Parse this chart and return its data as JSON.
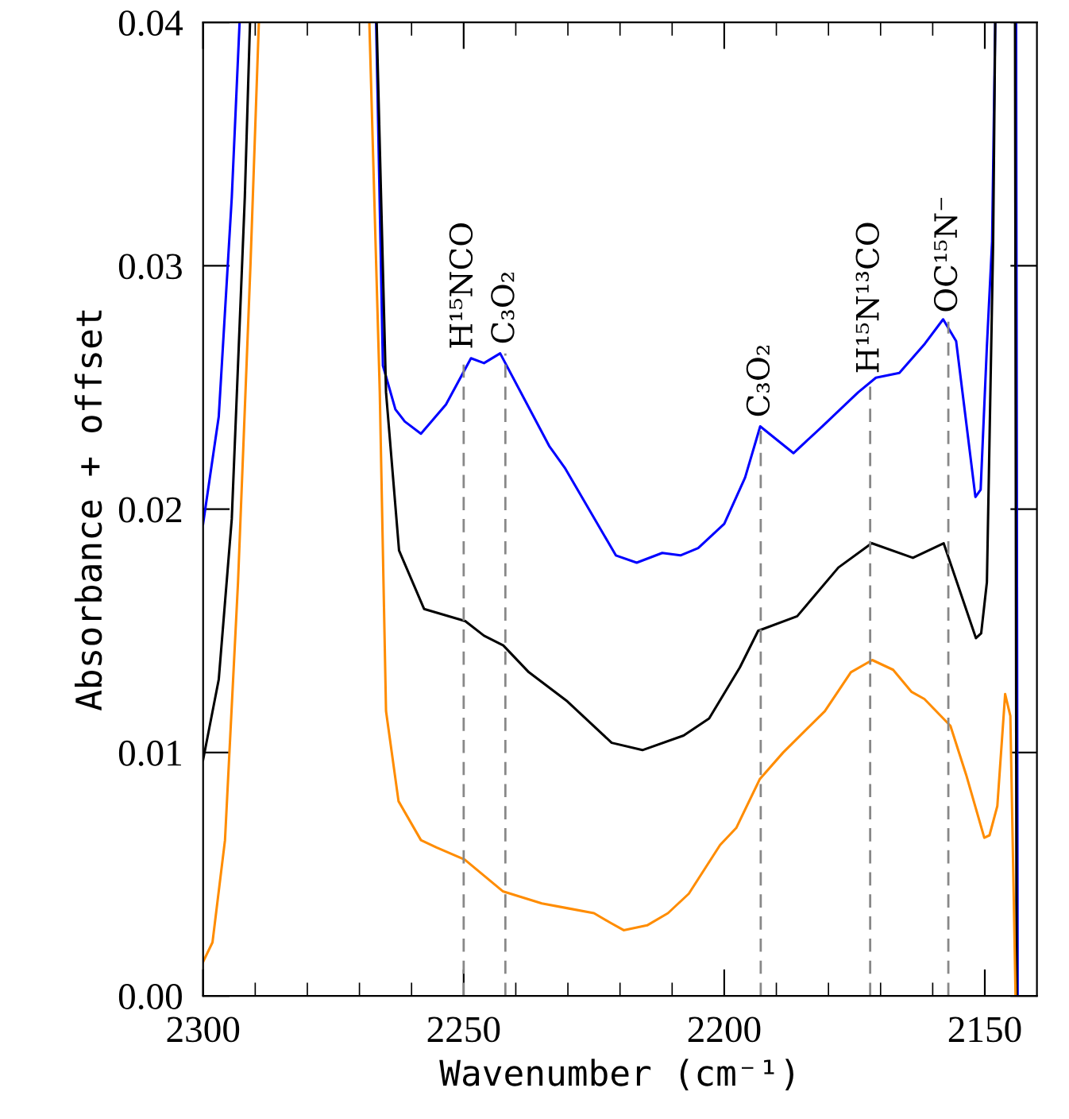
{
  "chart_data": {
    "type": "line",
    "xlabel": "Wavenumber (cm⁻¹)",
    "ylabel": "Absorbance + offset",
    "xlim": [
      2300,
      2140
    ],
    "ylim": [
      0,
      0.04
    ],
    "xticks": [
      2300,
      {
        "value": 2290,
        "label": null
      },
      {
        "value": 2280,
        "label": null
      },
      {
        "value": 2270,
        "label": null
      },
      {
        "value": 2260,
        "label": null
      },
      2250,
      {
        "value": 2240,
        "label": null
      },
      {
        "value": 2230,
        "label": null
      },
      {
        "value": 2220,
        "label": null
      },
      {
        "value": 2210,
        "label": null
      },
      2200,
      {
        "value": 2190,
        "label": null
      },
      {
        "value": 2180,
        "label": null
      },
      {
        "value": 2170,
        "label": null
      },
      {
        "value": 2160,
        "label": null
      },
      2150
    ],
    "yticks": [
      {
        "value": 0,
        "label": "0.00"
      },
      {
        "value": 0.01,
        "label": "0.01"
      },
      {
        "value": 0.02,
        "label": "0.02"
      },
      {
        "value": 0.03,
        "label": "0.03"
      },
      {
        "value": 0.04,
        "label": "0.04"
      }
    ],
    "grid": false,
    "legend": false,
    "marker": "none",
    "line_style": "solid",
    "series": [
      {
        "color": "#0000ff",
        "x": [
          2300,
          2297,
          2294.5,
          2293,
          2280,
          2266.8,
          2265.5,
          2263.1,
          2261.3,
          2258.2,
          2253.4,
          2248.6,
          2246.1,
          2243,
          2233.6,
          2230.6,
          2220.8,
          2216.8,
          2211.9,
          2208.4,
          2205,
          2200,
          2196,
          2193.1,
          2186.7,
          2181.2,
          2174.3,
          2170.9,
          2166.4,
          2161.5,
          2158,
          2155.5,
          2151.8,
          2150.8,
          2149.6,
          2148.6,
          2148,
          2146,
          2144,
          2143.7
        ],
        "values": [
          0.0194,
          0.0238,
          0.0328,
          0.04,
          null,
          0.04,
          0.0259,
          0.0241,
          0.0236,
          0.0231,
          0.0243,
          0.0262,
          0.026,
          0.0264,
          0.0226,
          0.0217,
          0.0181,
          0.0178,
          0.0182,
          0.0181,
          0.0184,
          0.0194,
          0.0213,
          0.0234,
          0.0223,
          0.0234,
          0.0248,
          0.0254,
          0.0256,
          0.0268,
          0.0278,
          0.0269,
          0.0205,
          0.0208,
          0.0267,
          0.031,
          0.04,
          null,
          0.04,
          0
        ]
      },
      {
        "color": "#000000",
        "x": [
          2300,
          2297,
          2294.5,
          2292,
          2291,
          2280,
          2266.7,
          2264.9,
          2262.4,
          2257.6,
          2249.7,
          2246.1,
          2242.4,
          2237.5,
          2230.1,
          2221.6,
          2215.7,
          2207.8,
          2202.9,
          2197,
          2193.5,
          2186,
          2178.1,
          2171.7,
          2163.8,
          2157.9,
          2151.7,
          2150.7,
          2149.6,
          2148.4,
          2148,
          2146,
          2144.2,
          2143.9
        ],
        "values": [
          0.0097,
          0.013,
          0.0196,
          0.0328,
          0.04,
          null,
          0.04,
          0.0248,
          0.0183,
          0.0159,
          0.0154,
          0.0148,
          0.0144,
          0.0133,
          0.0121,
          0.0104,
          0.0101,
          0.0107,
          0.0114,
          0.0135,
          0.015,
          0.0156,
          0.0176,
          0.0186,
          0.018,
          0.0186,
          0.0147,
          0.0149,
          0.017,
          0.031,
          0.04,
          null,
          0.04,
          0
        ]
      },
      {
        "color": "#ff8c00",
        "x": [
          2300,
          2298.2,
          2295.8,
          2293.3,
          2290.9,
          2289.3,
          2280,
          2268.1,
          2266.1,
          2264.9,
          2262.5,
          2258.2,
          2255.2,
          2249.8,
          2242.5,
          2235,
          2230,
          2225,
          2221.8,
          2219.3,
          2214.8,
          2210.8,
          2206.8,
          2200.8,
          2197.7,
          2193.2,
          2188.7,
          2180.7,
          2175.7,
          2171.6,
          2167.6,
          2164.1,
          2161.6,
          2156.6,
          2153.6,
          2150.1,
          2149.1,
          2147.6,
          2146.1,
          2145.1,
          2144.1
        ],
        "values": [
          0.0014,
          0.0022,
          0.0064,
          0.017,
          0.0301,
          0.04,
          null,
          0.04,
          0.0248,
          0.0117,
          0.008,
          0.0064,
          0.0061,
          0.0056,
          0.0043,
          0.0038,
          0.0036,
          0.0034,
          0.003,
          0.0027,
          0.0029,
          0.0034,
          0.0042,
          0.0062,
          0.0069,
          0.0089,
          0.01,
          0.0117,
          0.0133,
          0.0138,
          0.0134,
          0.0125,
          0.0122,
          0.0111,
          0.0091,
          0.0065,
          0.0066,
          0.0078,
          0.0124,
          0.0115,
          0
        ]
      }
    ],
    "annotations": [
      {
        "text": "H¹⁵NCO",
        "x": 2250,
        "y": 0.0262
      },
      {
        "text": "C₃O₂",
        "x": 2242,
        "y": 0.0264
      },
      {
        "text": "C₃O₂",
        "x": 2193,
        "y": 0.0234
      },
      {
        "text": "H¹⁵N¹³CO",
        "x": 2172,
        "y": 0.0252
      },
      {
        "text": "OC¹⁵N⁻",
        "x": 2157,
        "y": 0.0277
      }
    ]
  }
}
